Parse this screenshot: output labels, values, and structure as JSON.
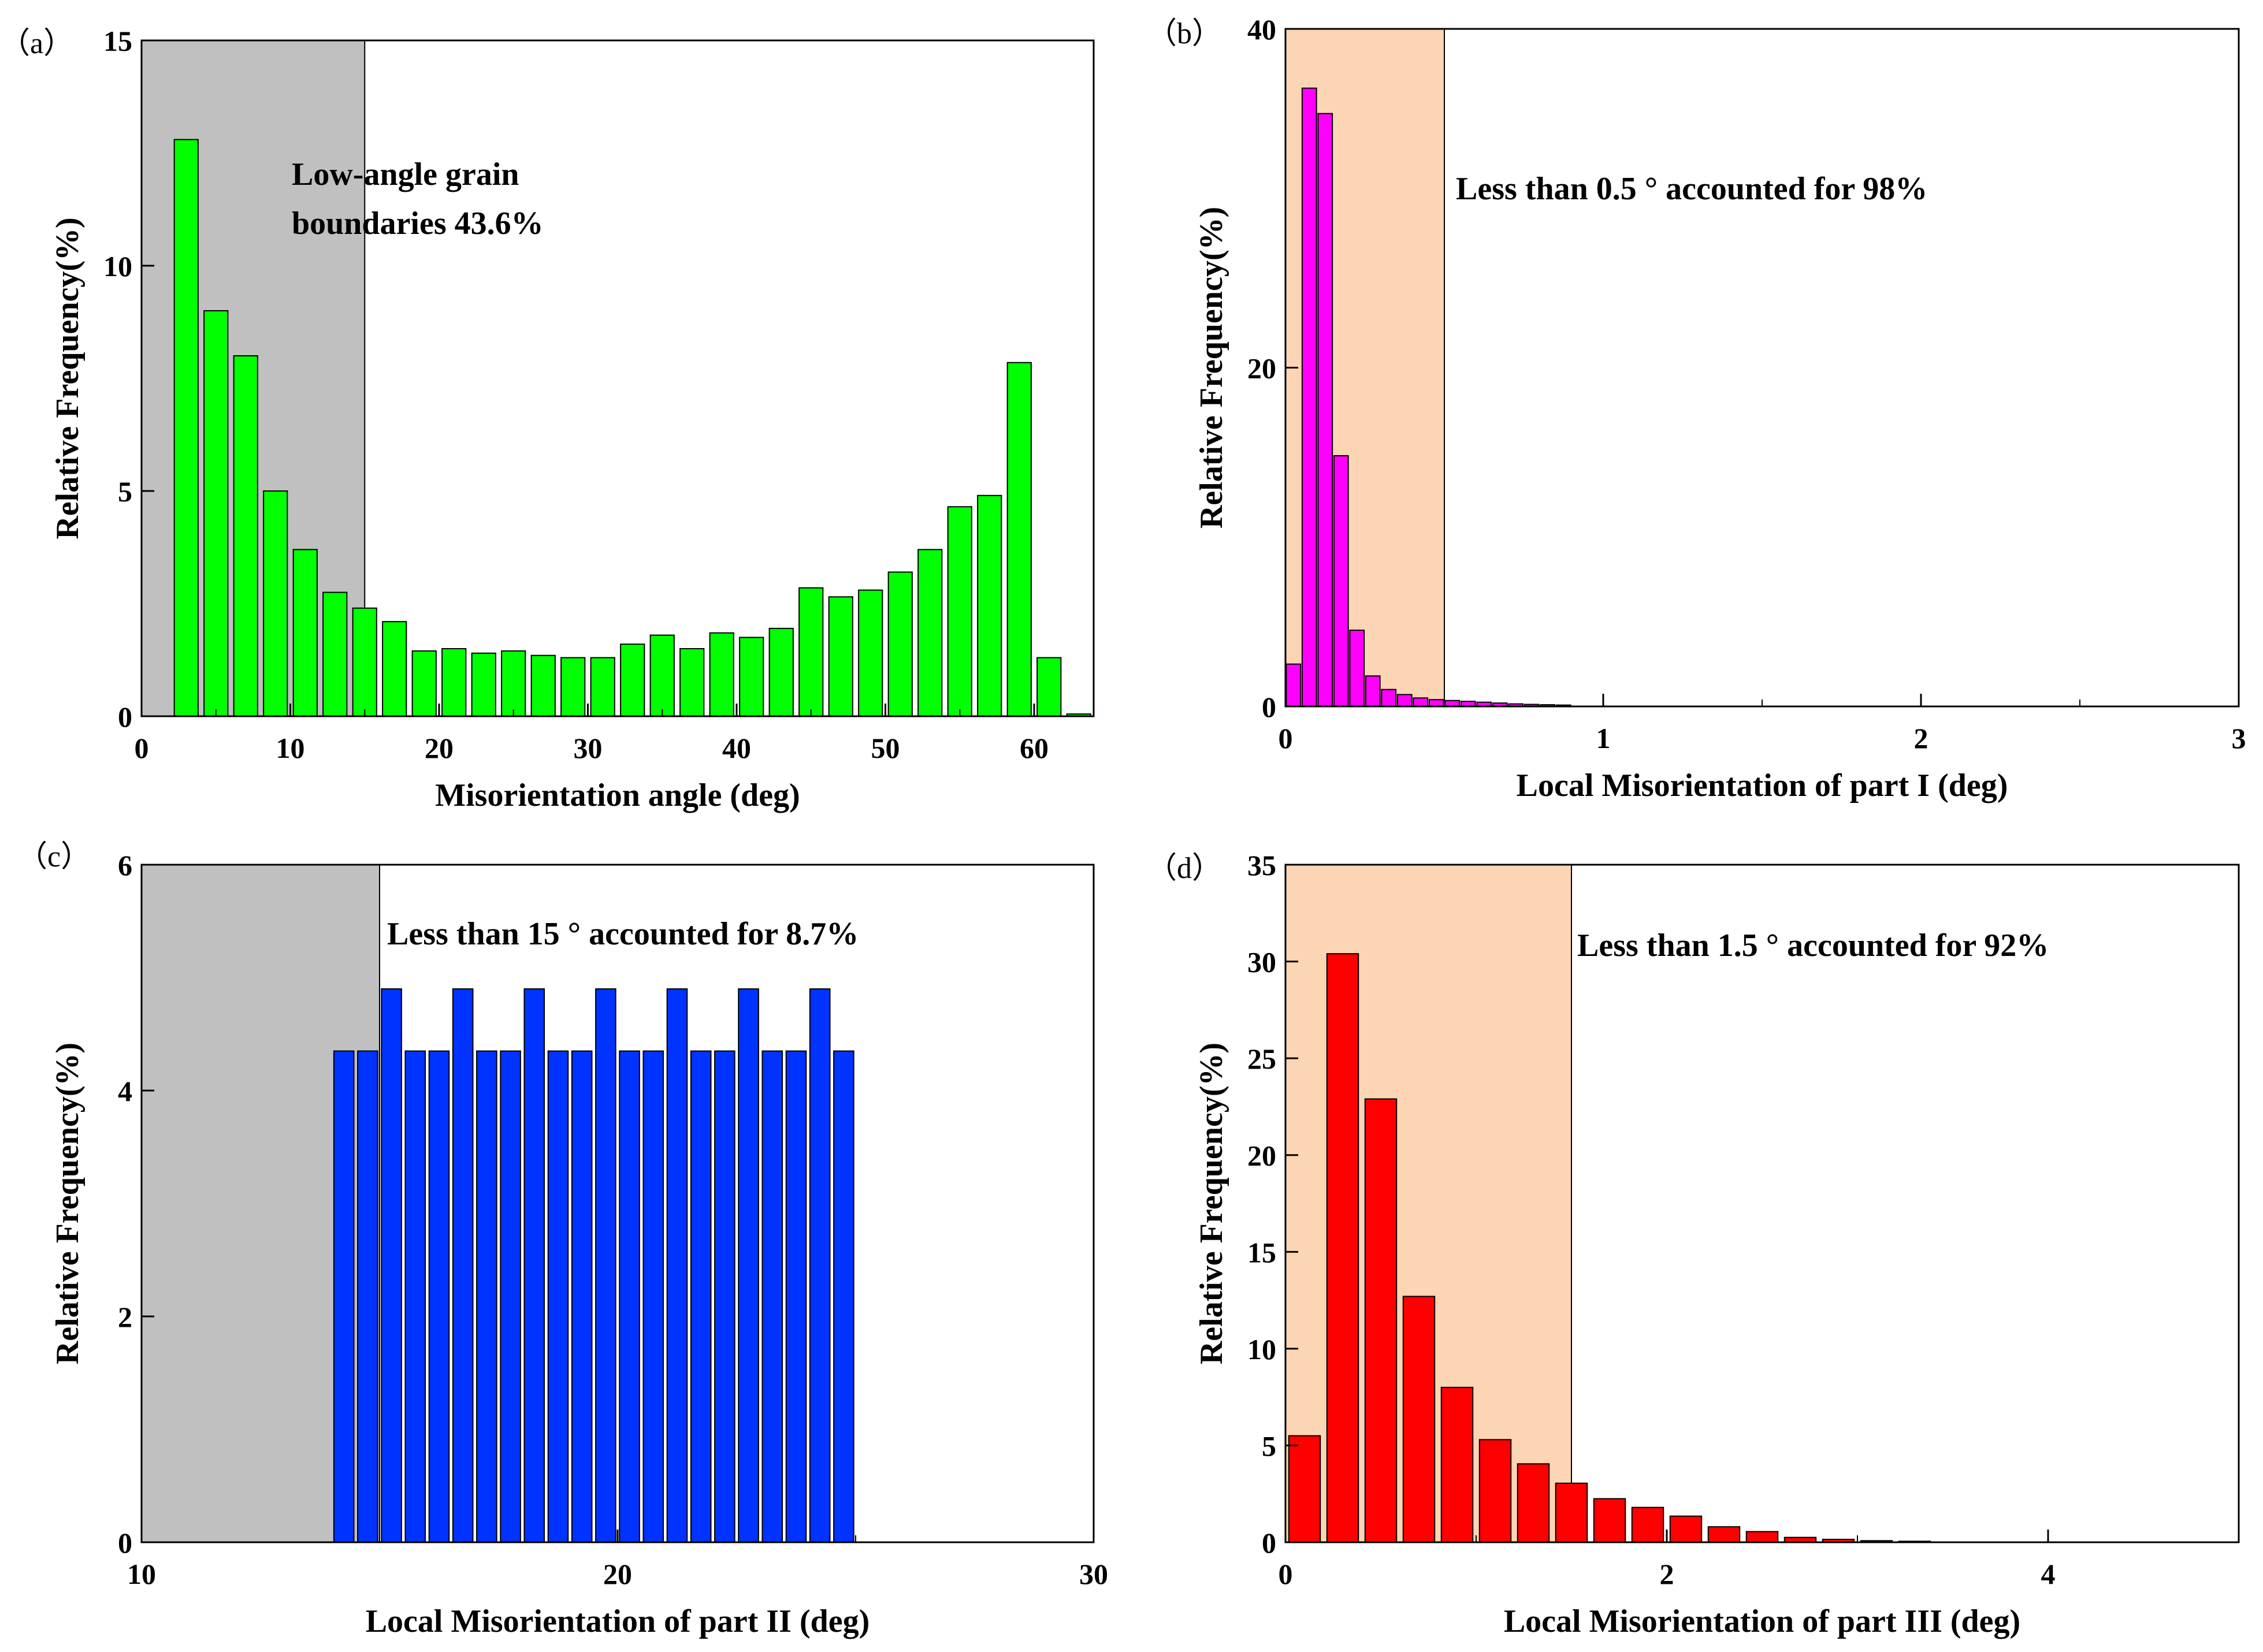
{
  "chart_data": [
    {
      "type": "bar",
      "panel_label": "（a）",
      "xlabel": "Misorientation angle (deg)",
      "ylabel": "Relative Frequency(%)",
      "xlim": [
        0,
        64
      ],
      "ylim": [
        0,
        15
      ],
      "xticks": [
        "0",
        "10",
        "20",
        "30",
        "40",
        "50",
        "60"
      ],
      "yticks": [
        "0",
        "5",
        "10",
        "15"
      ],
      "shade": {
        "from": 0,
        "to": 15,
        "color": "#c0c0c0"
      },
      "bar_color": "#00ff00",
      "bar_width": 1.6,
      "x": [
        3,
        5,
        7,
        9,
        11,
        13,
        15,
        17,
        19,
        21,
        23,
        25,
        27,
        29,
        31,
        33,
        35,
        37,
        39,
        41,
        43,
        45,
        47,
        49,
        51,
        53,
        55,
        57,
        59,
        61,
        63
      ],
      "values": [
        12.8,
        9.0,
        8.0,
        5.0,
        3.7,
        2.75,
        2.4,
        2.1,
        1.45,
        1.5,
        1.4,
        1.45,
        1.35,
        1.3,
        1.3,
        1.6,
        1.8,
        1.5,
        1.85,
        1.75,
        1.95,
        2.85,
        2.65,
        2.8,
        3.2,
        3.7,
        4.65,
        4.9,
        7.85,
        1.3,
        0.05
      ],
      "annotation": [
        "Low-angle grain",
        "boundaries 43.6%"
      ]
    },
    {
      "type": "bar",
      "panel_label": "（b）",
      "xlabel": "Local Misorientation of part I (deg)",
      "ylabel": "Relative Frequency(%)",
      "xlim": [
        0,
        3
      ],
      "ylim": [
        0,
        40
      ],
      "xticks": [
        "0",
        "1",
        "2",
        "3"
      ],
      "yticks": [
        "0",
        "20",
        "40"
      ],
      "shade": {
        "from": 0,
        "to": 0.5,
        "color": "#fcd5b4"
      },
      "bar_color": "#ff00ff",
      "bar_width": 0.045,
      "x": [
        0.025,
        0.075,
        0.125,
        0.175,
        0.225,
        0.275,
        0.325,
        0.375,
        0.425,
        0.475,
        0.525,
        0.575,
        0.625,
        0.675,
        0.725,
        0.775,
        0.825,
        0.875
      ],
      "values": [
        2.5,
        36.5,
        35.0,
        14.8,
        4.5,
        1.8,
        1.0,
        0.7,
        0.5,
        0.4,
        0.35,
        0.3,
        0.25,
        0.2,
        0.15,
        0.12,
        0.1,
        0.08
      ],
      "annotation": [
        "Less than 0.5 ° accounted for 98%"
      ]
    },
    {
      "type": "bar",
      "panel_label": "（c）",
      "xlabel": "Local Misorientation of part II (deg)",
      "ylabel": "Relative Frequency(%)",
      "xlim": [
        10,
        30
      ],
      "ylim": [
        0,
        6
      ],
      "xticks": [
        "10",
        "20",
        "30"
      ],
      "yticks": [
        "0",
        "2",
        "4",
        "6"
      ],
      "shade": {
        "from": 10,
        "to": 15,
        "color": "#c0c0c0"
      },
      "bar_color": "#0033ff",
      "bar_width": 0.42,
      "x": [
        14.25,
        14.75,
        15.25,
        15.75,
        16.25,
        16.75,
        17.25,
        17.75,
        18.25,
        18.75,
        19.25,
        19.75,
        20.25,
        20.75,
        21.25,
        21.75,
        22.25,
        22.75,
        23.25,
        23.75,
        24.25,
        24.75
      ],
      "values": [
        4.35,
        4.35,
        4.9,
        4.35,
        4.35,
        4.9,
        4.35,
        4.35,
        4.9,
        4.35,
        4.35,
        4.9,
        4.35,
        4.35,
        4.9,
        4.35,
        4.35,
        4.9,
        4.35,
        4.35,
        4.9,
        4.35
      ],
      "annotation": [
        "Less than 15 ° accounted for 8.7%"
      ]
    },
    {
      "type": "bar",
      "panel_label": "（d）",
      "xlabel": "Local Misorientation of part III (deg)",
      "ylabel": "Relative Frequency(%)",
      "xlim": [
        0,
        5
      ],
      "ylim": [
        0,
        35
      ],
      "xticks": [
        "0",
        "2",
        "4"
      ],
      "yticks": [
        "0",
        "5",
        "10",
        "15",
        "20",
        "25",
        "30",
        "35"
      ],
      "shade": {
        "from": 0,
        "to": 1.5,
        "color": "#fcd5b4"
      },
      "bar_color": "#ff0000",
      "bar_width": 0.165,
      "x": [
        0.1,
        0.3,
        0.5,
        0.7,
        0.9,
        1.1,
        1.3,
        1.5,
        1.7,
        1.9,
        2.1,
        2.3,
        2.5,
        2.7,
        2.9,
        3.1,
        3.3
      ],
      "values": [
        5.5,
        30.4,
        22.9,
        12.7,
        8.0,
        5.3,
        4.05,
        3.05,
        2.25,
        1.8,
        1.35,
        0.8,
        0.55,
        0.25,
        0.15,
        0.08,
        0.05
      ],
      "annotation": [
        "Less than 1.5 ° accounted for 92%"
      ]
    }
  ]
}
